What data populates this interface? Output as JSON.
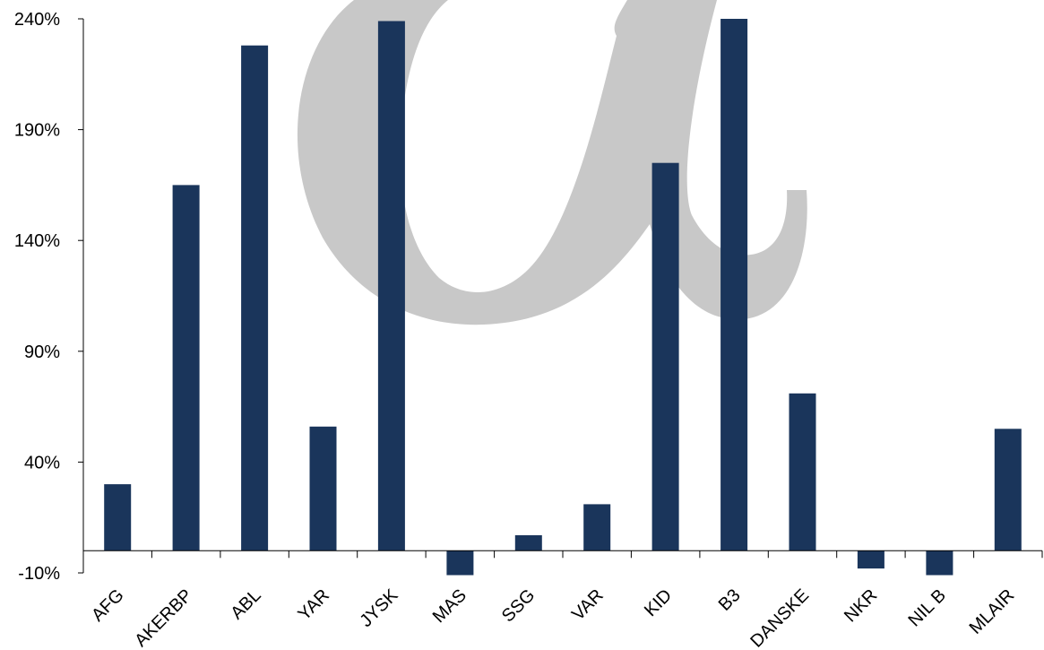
{
  "chart_data": {
    "type": "bar",
    "categories": [
      "AFG",
      "AKERBP",
      "ABL",
      "YAR",
      "JYSK",
      "MAS",
      "SSG",
      "VAR",
      "KID",
      "B3",
      "DANSKE",
      "NKR",
      "NIL B",
      "MLAIR"
    ],
    "values": [
      30,
      165,
      228,
      56,
      239,
      -11,
      7,
      21,
      175,
      240,
      71,
      -8,
      -11,
      55
    ],
    "ylim": [
      -10,
      240
    ],
    "yticks": [
      -10,
      40,
      90,
      140,
      190,
      240
    ],
    "ytick_suffix": "%",
    "grid": false,
    "legend": "none",
    "bar_color": "#1a355b",
    "watermark_color": "#c8c8c8",
    "watermark": "alpha-logo"
  }
}
